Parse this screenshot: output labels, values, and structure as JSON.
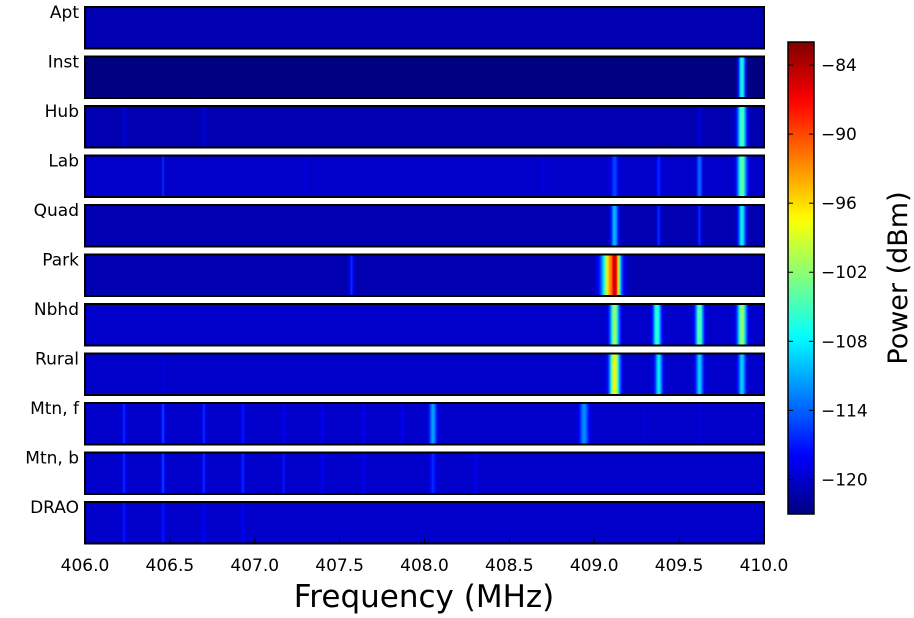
{
  "chart_data": {
    "type": "heatmap",
    "title": "",
    "xlabel": "Frequency (MHz)",
    "ylabel": "",
    "xlim": [
      406.0,
      410.0
    ],
    "x_ticks": [
      "406.0",
      "406.5",
      "407.0",
      "407.5",
      "408.0",
      "408.5",
      "409.0",
      "409.5",
      "410.0"
    ],
    "rows": [
      {
        "label": "Apt",
        "baseline": -121,
        "lines": []
      },
      {
        "label": "Inst",
        "baseline": -123,
        "lines": [
          {
            "f": 409.87,
            "p": -106,
            "w": 0.02
          }
        ]
      },
      {
        "label": "Hub",
        "baseline": -121,
        "lines": [
          {
            "f": 406.23,
            "p": -119,
            "w": 0.008
          },
          {
            "f": 406.7,
            "p": -119,
            "w": 0.008
          },
          {
            "f": 409.62,
            "p": -119,
            "w": 0.01
          },
          {
            "f": 409.87,
            "p": -104,
            "w": 0.025
          }
        ]
      },
      {
        "label": "Lab",
        "baseline": -120,
        "lines": [
          {
            "f": 406.46,
            "p": -116,
            "w": 0.006
          },
          {
            "f": 407.3,
            "p": -119,
            "w": 0.006
          },
          {
            "f": 408.7,
            "p": -119,
            "w": 0.008
          },
          {
            "f": 409.12,
            "p": -115,
            "w": 0.02
          },
          {
            "f": 409.38,
            "p": -116,
            "w": 0.012
          },
          {
            "f": 409.62,
            "p": -113,
            "w": 0.015
          },
          {
            "f": 409.87,
            "p": -103,
            "w": 0.025
          }
        ]
      },
      {
        "label": "Quad",
        "baseline": -121,
        "lines": [
          {
            "f": 409.12,
            "p": -110,
            "w": 0.02
          },
          {
            "f": 409.38,
            "p": -116,
            "w": 0.01
          },
          {
            "f": 409.62,
            "p": -116,
            "w": 0.01
          },
          {
            "f": 409.87,
            "p": -107,
            "w": 0.02
          }
        ]
      },
      {
        "label": "Park",
        "baseline": -121,
        "lines": [
          {
            "f": 407.57,
            "p": -116,
            "w": 0.012
          },
          {
            "f": 409.12,
            "p": -84,
            "w": 0.032
          },
          {
            "f": 409.1,
            "p": -92,
            "w": 0.05
          }
        ]
      },
      {
        "label": "Nbhd",
        "baseline": -120,
        "lines": [
          {
            "f": 409.12,
            "p": -101,
            "w": 0.025
          },
          {
            "f": 409.37,
            "p": -105,
            "w": 0.022
          },
          {
            "f": 409.62,
            "p": -103,
            "w": 0.022
          },
          {
            "f": 409.87,
            "p": -101,
            "w": 0.025
          }
        ]
      },
      {
        "label": "Rural",
        "baseline": -120,
        "lines": [
          {
            "f": 406.46,
            "p": -119,
            "w": 0.006
          },
          {
            "f": 409.12,
            "p": -97,
            "w": 0.028
          },
          {
            "f": 409.38,
            "p": -108,
            "w": 0.02
          },
          {
            "f": 409.62,
            "p": -109,
            "w": 0.02
          },
          {
            "f": 409.87,
            "p": -109,
            "w": 0.02
          }
        ]
      },
      {
        "label": "Mtn, f",
        "baseline": -120,
        "lines": [
          {
            "f": 406.23,
            "p": -116,
            "w": 0.01
          },
          {
            "f": 406.46,
            "p": -115,
            "w": 0.01
          },
          {
            "f": 406.7,
            "p": -116,
            "w": 0.01
          },
          {
            "f": 406.93,
            "p": -117,
            "w": 0.01
          },
          {
            "f": 407.17,
            "p": -118,
            "w": 0.008
          },
          {
            "f": 407.4,
            "p": -118,
            "w": 0.008
          },
          {
            "f": 407.64,
            "p": -118,
            "w": 0.008
          },
          {
            "f": 407.87,
            "p": -118,
            "w": 0.008
          },
          {
            "f": 408.05,
            "p": -111,
            "w": 0.02
          },
          {
            "f": 408.94,
            "p": -112,
            "w": 0.025
          },
          {
            "f": 409.3,
            "p": -119,
            "w": 0.008
          },
          {
            "f": 409.62,
            "p": -119,
            "w": 0.008
          }
        ]
      },
      {
        "label": "Mtn, b",
        "baseline": -120,
        "lines": [
          {
            "f": 406.23,
            "p": -116,
            "w": 0.01
          },
          {
            "f": 406.46,
            "p": -115,
            "w": 0.01
          },
          {
            "f": 406.7,
            "p": -116,
            "w": 0.01
          },
          {
            "f": 406.93,
            "p": -116,
            "w": 0.01
          },
          {
            "f": 407.17,
            "p": -117,
            "w": 0.008
          },
          {
            "f": 407.4,
            "p": -118,
            "w": 0.008
          },
          {
            "f": 407.64,
            "p": -118,
            "w": 0.008
          },
          {
            "f": 408.05,
            "p": -116,
            "w": 0.015
          },
          {
            "f": 408.3,
            "p": -118,
            "w": 0.008
          }
        ]
      },
      {
        "label": "DRAO",
        "baseline": -120,
        "lines": [
          {
            "f": 406.23,
            "p": -117,
            "w": 0.01
          },
          {
            "f": 406.46,
            "p": -117,
            "w": 0.01
          },
          {
            "f": 406.7,
            "p": -118,
            "w": 0.01
          },
          {
            "f": 406.93,
            "p": -118,
            "w": 0.008
          }
        ]
      }
    ],
    "colorbar": {
      "label": "Power (dBm)",
      "range": [
        -123,
        -82
      ],
      "ticks": [
        "−84",
        "−90",
        "−96",
        "−102",
        "−108",
        "−114",
        "−120"
      ],
      "tick_values": [
        -84,
        -90,
        -96,
        -102,
        -108,
        -114,
        -120
      ],
      "colormap": "jet"
    },
    "grid": false,
    "legend": "none"
  }
}
